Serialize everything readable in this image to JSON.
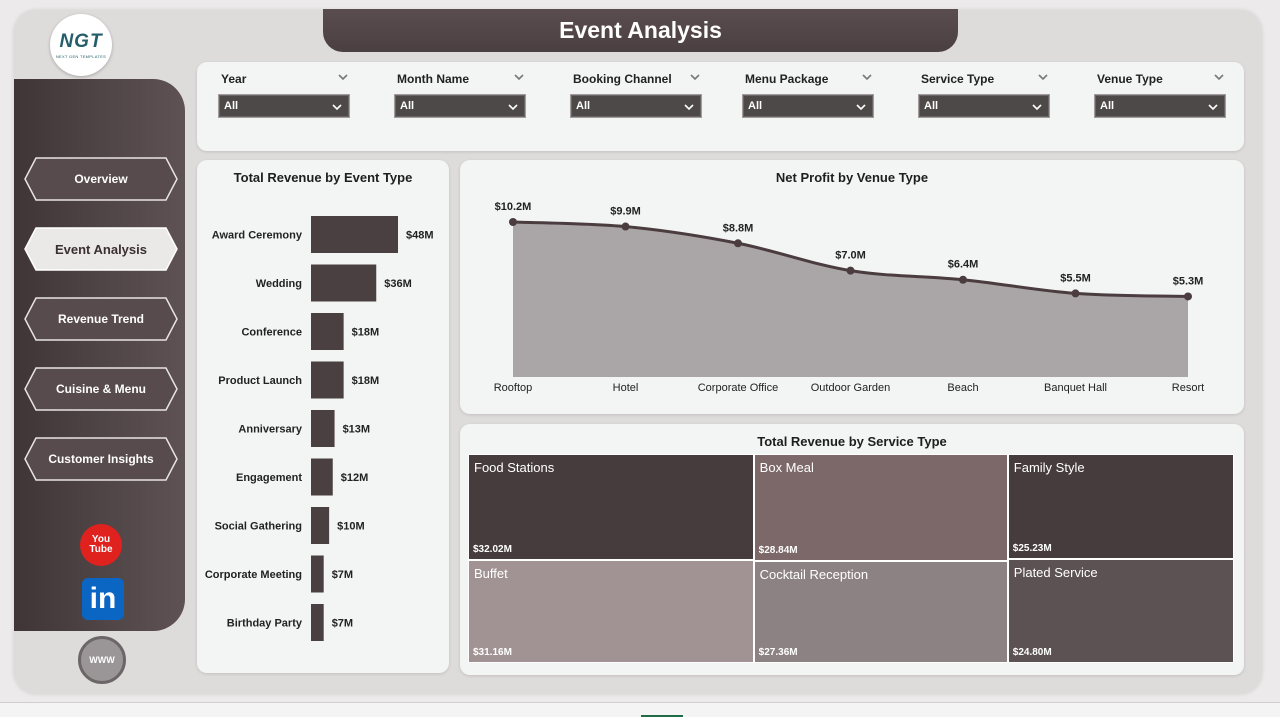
{
  "header": {
    "title": "Event Analysis"
  },
  "logo": {
    "text": "NGT",
    "subtext": "NEXT GEN TEMPLATES"
  },
  "sidebar": {
    "items": [
      {
        "label": "Overview",
        "active": false
      },
      {
        "label": "Event Analysis",
        "active": true
      },
      {
        "label": "Revenue Trend",
        "active": false
      },
      {
        "label": "Cuisine & Menu",
        "active": false
      },
      {
        "label": "Customer Insights",
        "active": false
      }
    ],
    "social": {
      "youtube_top": "You",
      "youtube_bottom": "Tube",
      "linkedin": "in",
      "web": "WWW"
    }
  },
  "filters": [
    {
      "label": "Year",
      "value": "All"
    },
    {
      "label": "Month Name",
      "value": "All"
    },
    {
      "label": "Booking Channel",
      "value": "All"
    },
    {
      "label": "Menu Package",
      "value": "All"
    },
    {
      "label": "Service Type",
      "value": "All"
    },
    {
      "label": "Venue Type",
      "value": "All"
    }
  ],
  "colors": {
    "bar": "#4a3f41",
    "area_fill": "#aaa5a6",
    "line": "#4a3c3f",
    "accent_dark": "#4a3f41"
  },
  "chart_data": [
    {
      "type": "bar",
      "orientation": "horizontal",
      "title": "Total Revenue by Event Type",
      "categories": [
        "Award Ceremony",
        "Wedding",
        "Conference",
        "Product Launch",
        "Anniversary",
        "Engagement",
        "Social Gathering",
        "Corporate Meeting",
        "Birthday Party"
      ],
      "values": [
        48,
        36,
        18,
        18,
        13,
        12,
        10,
        7,
        7
      ],
      "labels": [
        "$48M",
        "$36M",
        "$18M",
        "$18M",
        "$13M",
        "$12M",
        "$10M",
        "$7M",
        "$7M"
      ],
      "unit": "M",
      "grid": false
    },
    {
      "type": "area",
      "title": "Net Profit by Venue Type",
      "categories": [
        "Rooftop",
        "Hotel",
        "Corporate Office",
        "Outdoor Garden",
        "Beach",
        "Banquet Hall",
        "Resort"
      ],
      "values": [
        10.2,
        9.9,
        8.8,
        7.0,
        6.4,
        5.5,
        5.3
      ],
      "labels": [
        "$10.2M",
        "$9.9M",
        "$8.8M",
        "$7.0M",
        "$6.4M",
        "$5.5M",
        "$5.3M"
      ],
      "ylim": [
        0,
        10.2
      ],
      "grid": false
    },
    {
      "type": "treemap",
      "title": "Total Revenue by Service Type",
      "items": [
        {
          "name": "Food Stations",
          "label": "$32.02M",
          "value": 32.02,
          "color": "#463c3e"
        },
        {
          "name": "Buffet",
          "label": "$31.16M",
          "value": 31.16,
          "color": "#a19394"
        },
        {
          "name": "Box Meal",
          "label": "$28.84M",
          "value": 28.84,
          "color": "#7d6869"
        },
        {
          "name": "Cocktail Reception",
          "label": "$27.36M",
          "value": 27.36,
          "color": "#8d8283"
        },
        {
          "name": "Family Style",
          "label": "$25.23M",
          "value": 25.23,
          "color": "#463c3e"
        },
        {
          "name": "Plated Service",
          "label": "$24.80M",
          "value": 24.8,
          "color": "#5c5253"
        }
      ]
    }
  ]
}
